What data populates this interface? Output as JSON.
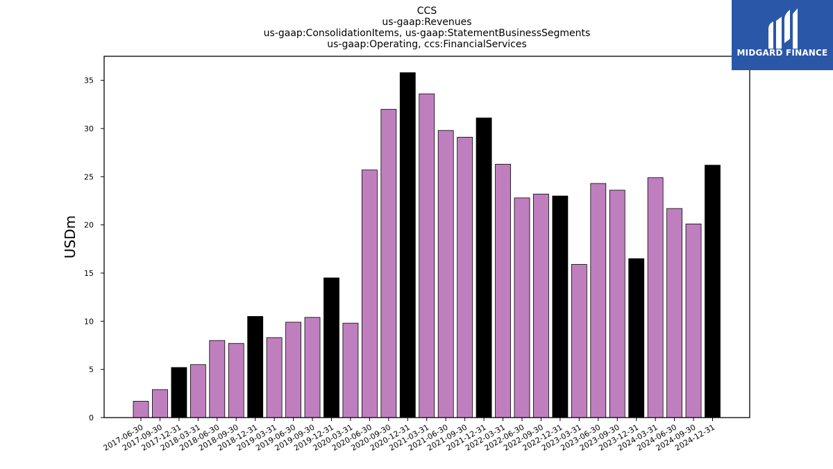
{
  "brand": {
    "name": "MIDGARD FINANCE",
    "logo_icon": "midgard-m-icon",
    "background_color": "#2b57a8"
  },
  "chart_data": {
    "type": "bar",
    "title_lines": [
      "CCS",
      "us-gaap:Revenues",
      "us-gaap:ConsolidationItems, us-gaap:StatementBusinessSegments",
      "us-gaap:Operating, ccs:FinancialServices"
    ],
    "xlabel": "",
    "ylabel": "USDm",
    "ylim": [
      0,
      37.5
    ],
    "yticks": [
      0,
      5,
      10,
      15,
      20,
      25,
      30,
      35
    ],
    "grid": false,
    "colors": {
      "quarter": "#bf7fbf",
      "year_end": "#000000"
    },
    "categories": [
      "2017-06-30",
      "2017-09-30",
      "2017-12-31",
      "2018-03-31",
      "2018-06-30",
      "2018-09-30",
      "2018-12-31",
      "2019-03-31",
      "2019-06-30",
      "2019-09-30",
      "2019-12-31",
      "2020-03-31",
      "2020-06-30",
      "2020-09-30",
      "2020-12-31",
      "2021-03-31",
      "2021-06-30",
      "2021-09-30",
      "2021-12-31",
      "2022-03-31",
      "2022-06-30",
      "2022-09-30",
      "2022-12-31",
      "2023-03-31",
      "2023-06-30",
      "2023-09-30",
      "2023-12-31",
      "2024-03-31",
      "2024-06-30",
      "2024-09-30",
      "2024-12-31"
    ],
    "values": [
      1.7,
      2.9,
      5.2,
      5.5,
      8.0,
      7.7,
      10.5,
      8.3,
      9.9,
      10.4,
      14.5,
      9.8,
      25.7,
      32.0,
      35.8,
      33.6,
      29.8,
      29.1,
      31.1,
      26.3,
      22.8,
      23.2,
      23.0,
      15.9,
      24.3,
      23.6,
      16.5,
      24.9,
      21.7,
      20.1,
      26.2
    ]
  }
}
